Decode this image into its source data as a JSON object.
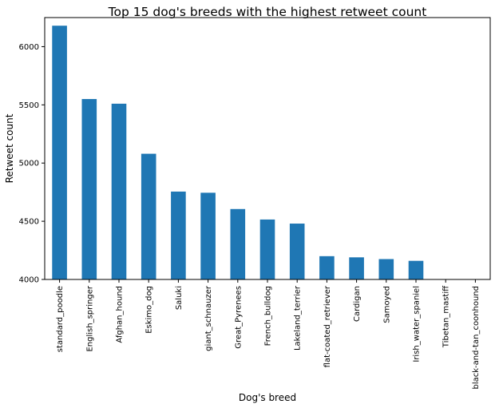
{
  "chart_data": {
    "type": "bar",
    "title": "Top 15 dog's breeds with the highest retweet count",
    "xlabel": "Dog's breed",
    "ylabel": "Retweet count",
    "ylim": [
      4000,
      6250
    ],
    "yticks": [
      4000,
      4500,
      5000,
      5500,
      6000
    ],
    "grid": false,
    "bar_color": "#1f77b4",
    "categories": [
      "standard_poodle",
      "English_springer",
      "Afghan_hound",
      "Eskimo_dog",
      "Saluki",
      "giant_schnauzer",
      "Great_Pyrenees",
      "French_bulldog",
      "Lakeland_terrier",
      "flat-coated_retriever",
      "Cardigan",
      "Samoyed",
      "Irish_water_spaniel",
      "Tibetan_mastiff",
      "black-and-tan_coonhound"
    ],
    "values": [
      6180,
      5550,
      5510,
      5080,
      4755,
      4745,
      4605,
      4515,
      4480,
      4200,
      4190,
      4175,
      4160,
      4000,
      4000
    ]
  }
}
